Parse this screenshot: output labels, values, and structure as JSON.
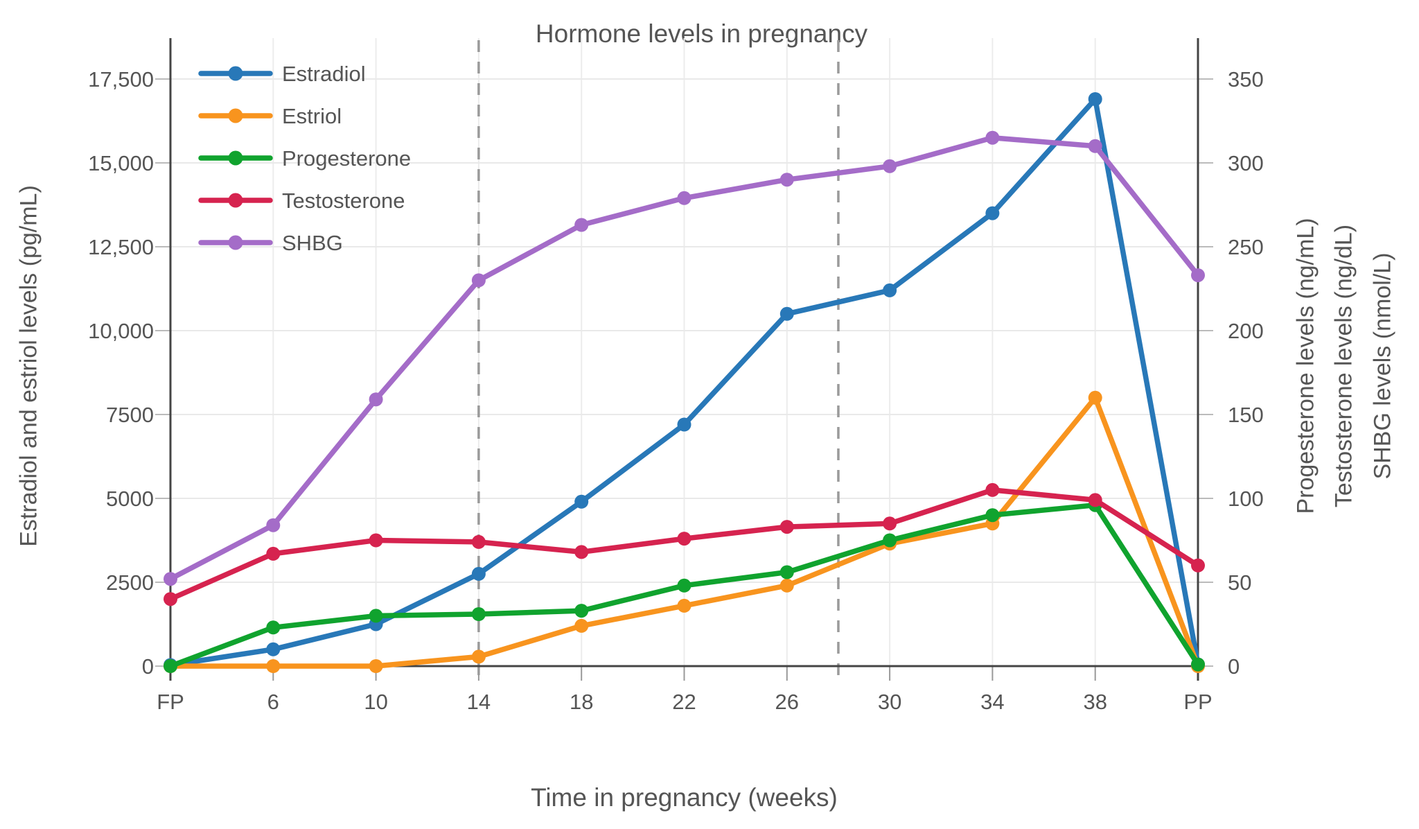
{
  "chart_data": {
    "type": "line",
    "title": "Hormone levels in pregnancy",
    "xlabel": "Time in pregnancy (weeks)",
    "categories": [
      "FP",
      "6",
      "10",
      "14",
      "18",
      "22",
      "26",
      "30",
      "34",
      "38",
      "PP"
    ],
    "left_axis": {
      "label": "Estradiol and estriol levels (pg/mL)",
      "lim": [
        0,
        17500
      ],
      "ticks": [
        {
          "label": "0",
          "value": 0
        },
        {
          "label": "2500",
          "value": 2500
        },
        {
          "label": "5000",
          "value": 5000
        },
        {
          "label": "7500",
          "value": 7500
        },
        {
          "label": "10,000",
          "value": 10000
        },
        {
          "label": "12,500",
          "value": 12500
        },
        {
          "label": "15,000",
          "value": 15000
        },
        {
          "label": "17,500",
          "value": 17500
        }
      ]
    },
    "right_axis": {
      "labels": [
        "Progesterone levels (ng/mL)",
        "Testosterone levels (ng/dL)",
        "SHBG levels (nmol/L)"
      ],
      "lim": [
        0,
        350
      ],
      "ticks": [
        {
          "label": "0",
          "value": 0
        },
        {
          "label": "50",
          "value": 50
        },
        {
          "label": "100",
          "value": 100
        },
        {
          "label": "150",
          "value": 150
        },
        {
          "label": "200",
          "value": 200
        },
        {
          "label": "250",
          "value": 250
        },
        {
          "label": "300",
          "value": 300
        },
        {
          "label": "350",
          "value": 350
        }
      ]
    },
    "trimester_dividers": {
      "weeks": [
        14,
        28
      ],
      "category_positions": [
        3,
        6.5
      ]
    },
    "legend": {
      "position": "top-left"
    },
    "grid": true,
    "series": [
      {
        "name": "Estradiol",
        "axis": "left",
        "color": "#2878b8",
        "unit": "pg/mL",
        "values": [
          30,
          500,
          1250,
          2750,
          4900,
          7200,
          10500,
          11200,
          13500,
          16900,
          50
        ]
      },
      {
        "name": "Estriol",
        "axis": "left",
        "color": "#f8941e",
        "unit": "pg/mL",
        "values": [
          0,
          0,
          0,
          280,
          1200,
          1800,
          2400,
          3650,
          4250,
          8000,
          0
        ]
      },
      {
        "name": "Progesterone",
        "axis": "right",
        "color": "#10a32e",
        "unit": "ng/mL",
        "values": [
          0,
          23,
          30,
          31,
          33,
          48,
          56,
          75,
          90,
          96,
          1
        ]
      },
      {
        "name": "Testosterone",
        "axis": "right",
        "color": "#d6234f",
        "unit": "ng/dL",
        "values": [
          40,
          67,
          75,
          74,
          68,
          76,
          83,
          85,
          105,
          99,
          60
        ]
      },
      {
        "name": "SHBG",
        "axis": "right",
        "color": "#a46cc8",
        "unit": "nmol/L",
        "values": [
          52,
          84,
          159,
          230,
          263,
          279,
          290,
          298,
          315,
          310,
          233
        ]
      }
    ]
  }
}
